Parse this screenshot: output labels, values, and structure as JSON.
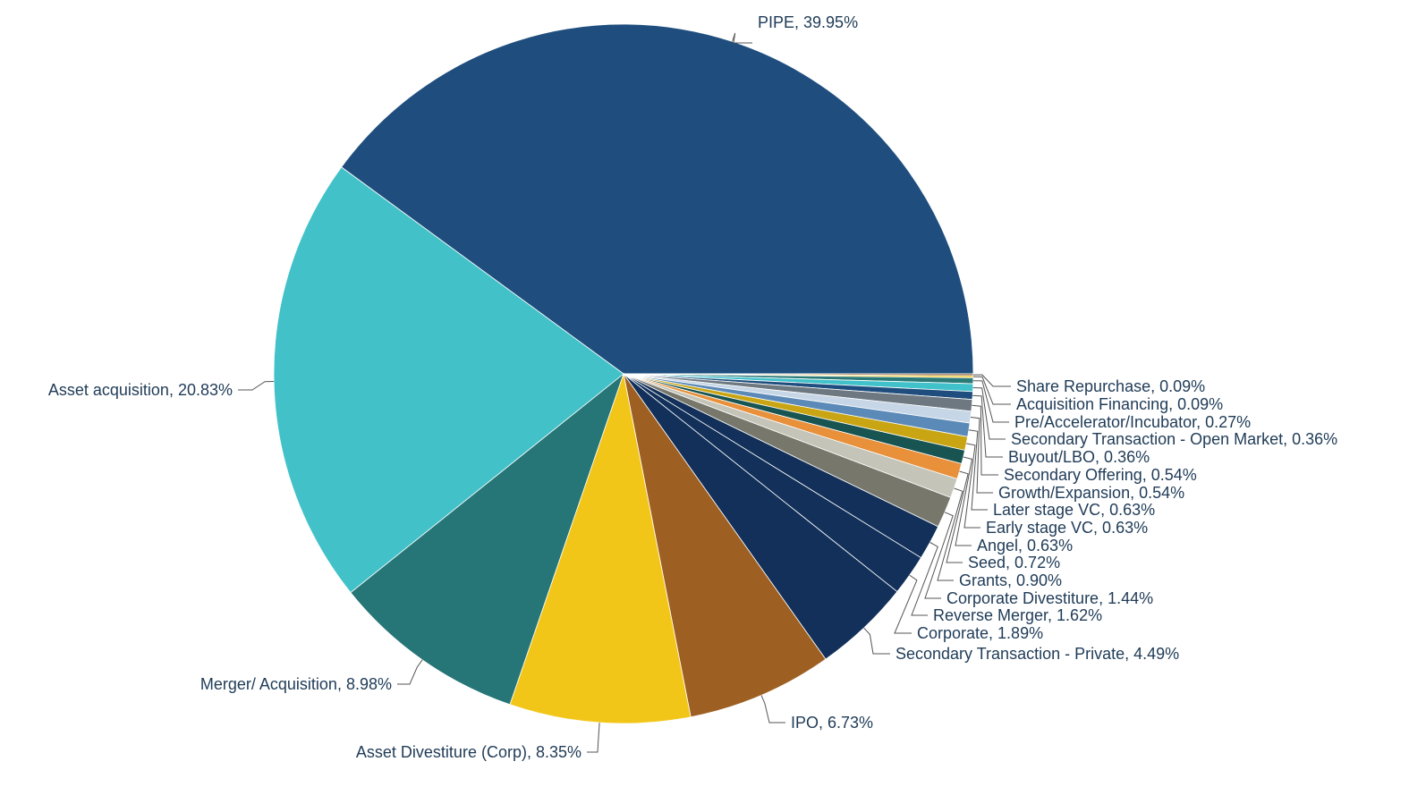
{
  "chart_data": {
    "type": "pie",
    "title": "",
    "slices": [
      {
        "name": "PIPE",
        "value": 39.95,
        "label": "PIPE, 39.95%",
        "color": "#1f4e7e"
      },
      {
        "name": "Share Repurchase",
        "value": 0.09,
        "label": "Share Repurchase, 0.09%",
        "color": "#8a5a2b"
      },
      {
        "name": "Acquisition Financing",
        "value": 0.09,
        "label": "Acquisition Financing, 0.09%",
        "color": "#f0c419"
      },
      {
        "name": "Pre/Accelerator/Incubator",
        "value": 0.27,
        "label": "Pre/Accelerator/Incubator, 0.27%",
        "color": "#2a7a78"
      },
      {
        "name": "Secondary Transaction - Open Market",
        "value": 0.36,
        "label": "Secondary Transaction - Open Market, 0.36%",
        "color": "#41c1c9"
      },
      {
        "name": "Buyout/LBO",
        "value": 0.36,
        "label": "Buyout/LBO, 0.36%",
        "color": "#1f4e7e"
      },
      {
        "name": "Secondary Offering",
        "value": 0.54,
        "label": "Secondary Offering, 0.54%",
        "color": "#6e7881"
      },
      {
        "name": "Growth/Expansion",
        "value": 0.54,
        "label": "Growth/Expansion, 0.54%",
        "color": "#c6d6e6"
      },
      {
        "name": "Later stage VC",
        "value": 0.63,
        "label": "Later stage VC, 0.63%",
        "color": "#5b8ab8"
      },
      {
        "name": "Early stage VC",
        "value": 0.63,
        "label": "Early stage VC, 0.63%",
        "color": "#c9a514"
      },
      {
        "name": "Angel",
        "value": 0.63,
        "label": "Angel, 0.63%",
        "color": "#175452"
      },
      {
        "name": "Seed",
        "value": 0.72,
        "label": "Seed, 0.72%",
        "color": "#e8903a"
      },
      {
        "name": "Grants",
        "value": 0.9,
        "label": "Grants, 0.90%",
        "color": "#c4c4b8"
      },
      {
        "name": "Corporate Divestiture",
        "value": 1.44,
        "label": "Corporate Divestiture, 1.44%",
        "color": "#77776c"
      },
      {
        "name": "Reverse Merger",
        "value": 1.62,
        "label": "Reverse Merger, 1.62%",
        "color": "#12305a"
      },
      {
        "name": "Corporate",
        "value": 1.89,
        "label": "Corporate, 1.89%",
        "color": "#12305a"
      },
      {
        "name": "Secondary Transaction - Private",
        "value": 4.49,
        "label": "Secondary Transaction - Private, 4.49%",
        "color": "#12305a"
      },
      {
        "name": "IPO",
        "value": 6.73,
        "label": "IPO, 6.73%",
        "color": "#9e5f22"
      },
      {
        "name": "Asset Divestiture (Corp)",
        "value": 8.35,
        "label": "Asset Divestiture (Corp), 8.35%",
        "color": "#f2c618"
      },
      {
        "name": "Merger/ Acquisition",
        "value": 8.98,
        "label": "Merger/ Acquisition, 8.98%",
        "color": "#267577"
      },
      {
        "name": "Asset acquisition",
        "value": 20.83,
        "label": "Asset acquisition, 20.83%",
        "color": "#42c2c8"
      }
    ]
  }
}
